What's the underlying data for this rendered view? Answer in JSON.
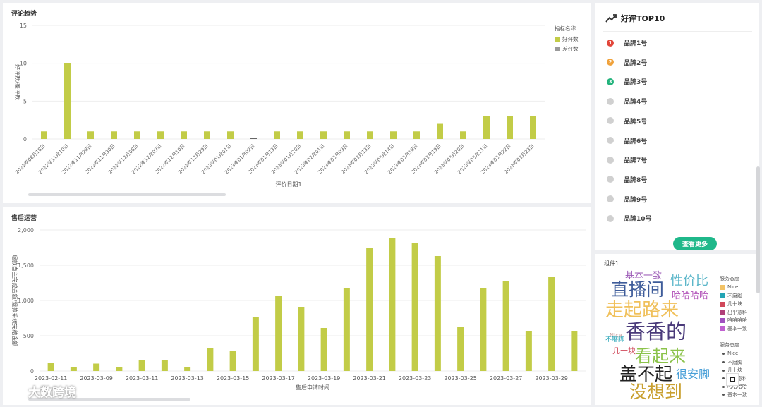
{
  "colors": {
    "bar": "#c2cc47",
    "bad": "#9a9a9a",
    "accent": "#1fb88a"
  },
  "review_trend": {
    "title": "评论趋势",
    "legend_title": "指标名称",
    "legend": [
      "好评数",
      "差评数"
    ]
  },
  "after_sales": {
    "title": "售后运营"
  },
  "top10": {
    "title": "好评TOP10",
    "icon": "trending-up-icon",
    "items": [
      {
        "rank": "1",
        "name": "品牌1号",
        "color": "#e2463a"
      },
      {
        "rank": "2",
        "name": "品牌2号",
        "color": "#f0a23b"
      },
      {
        "rank": "3",
        "name": "品牌3号",
        "color": "#23b37c"
      },
      {
        "rank": "",
        "name": "品牌4号",
        "color": "#d0d0d0"
      },
      {
        "rank": "",
        "name": "品牌5号",
        "color": "#d0d0d0"
      },
      {
        "rank": "",
        "name": "品牌6号",
        "color": "#d0d0d0"
      },
      {
        "rank": "",
        "name": "品牌7号",
        "color": "#d0d0d0"
      },
      {
        "rank": "",
        "name": "品牌8号",
        "color": "#d0d0d0"
      },
      {
        "rank": "",
        "name": "品牌9号",
        "color": "#d0d0d0"
      },
      {
        "rank": "",
        "name": "品牌10号",
        "color": "#d0d0d0"
      }
    ],
    "more_label": "查看更多"
  },
  "wordcloud": {
    "title": "组件1",
    "words": [
      {
        "text": "基本一致",
        "color": "#9b59b6"
      },
      {
        "text": "性价比",
        "color": "#5bb6c9"
      },
      {
        "text": "直播间",
        "color": "#3e5c9a"
      },
      {
        "text": "哈哈哈哈",
        "color": "#b04fb7"
      },
      {
        "text": "走起路来",
        "color": "#f0c05a"
      },
      {
        "text": "香香的",
        "color": "#4a3a7a"
      },
      {
        "text": "Nice",
        "color": "#c9a0a0"
      },
      {
        "text": "不磨脚",
        "color": "#2aa6b8"
      },
      {
        "text": "几十块",
        "color": "#d0485a"
      },
      {
        "text": "看起来",
        "color": "#8bc34a"
      },
      {
        "text": "盖不起",
        "color": "#222222"
      },
      {
        "text": "很安脚",
        "color": "#4aa0d8"
      },
      {
        "text": "没想到",
        "color": "#c9a030"
      }
    ],
    "legend1_title": "服务态度",
    "legend1": [
      {
        "label": "Nice",
        "color": "#f2c265"
      },
      {
        "label": "不磨脚",
        "color": "#23a5b5"
      },
      {
        "label": "几十块",
        "color": "#d0485a"
      },
      {
        "label": "出乎意料",
        "color": "#b0407a"
      },
      {
        "label": "哈哈哈哈",
        "color": "#a050c0"
      },
      {
        "label": "基本一致",
        "color": "#c060d0"
      }
    ],
    "legend2_title": "服务态度",
    "legend2": [
      "Nice",
      "不磨脚",
      "几十块",
      "出乎意料",
      "哈哈哈哈",
      "基本一致"
    ]
  },
  "watermark": "大数跨境",
  "chart_data": [
    {
      "type": "bar",
      "title": "评论趋势",
      "xlabel": "评价日期1",
      "ylabel": "好评数/差评数",
      "ylim": [
        0,
        15
      ],
      "yticks": [
        0,
        5,
        10,
        15
      ],
      "categories": [
        "2022年08月18日",
        "2022年11月10日",
        "2022年11月28日",
        "2022年11月30日",
        "2022年12月08日",
        "2022年12月09日",
        "2022年12月10日",
        "2022年12月29日",
        "2023年01月01日",
        "2023年01月02日",
        "2023年01月13日",
        "2023年01月20日",
        "2023年02月01日",
        "2023年03月09日",
        "2023年03月13日",
        "2023年03月14日",
        "2023年03月18日",
        "2023年03月19日",
        "2023年03月20日",
        "2023年03月21日",
        "2023年03月22日",
        "2023年03月23日"
      ],
      "series": [
        {
          "name": "好评数",
          "values": [
            1,
            10,
            1,
            1,
            1,
            1,
            1,
            1,
            1,
            0,
            1,
            1,
            1,
            1,
            1,
            1,
            1,
            2,
            1,
            3,
            3,
            3
          ]
        },
        {
          "name": "差评数",
          "values": [
            0,
            0,
            0,
            0,
            0,
            0,
            0,
            0,
            0,
            0,
            0,
            0,
            0,
            0,
            0,
            0,
            0,
            0,
            0,
            0,
            0,
            0
          ]
        }
      ],
      "legend": "top-right",
      "grid": true
    },
    {
      "type": "bar",
      "title": "售后运营",
      "xlabel": "售后申请时间",
      "ylabel": "退款自主完成金额/退款系统完结金额",
      "ylim": [
        0,
        2000
      ],
      "yticks": [
        0,
        500,
        1000,
        1500,
        2000
      ],
      "ytick_labels": [
        "0",
        "500",
        "1,000",
        "1,500",
        "2,000"
      ],
      "x_tick_labels": [
        "2023-02-11",
        "2023-03-09",
        "2023-03-11",
        "2023-03-13",
        "2023-03-15",
        "2023-03-17",
        "2023-03-19",
        "2023-03-21",
        "2023-03-23",
        "2023-03-25",
        "2023-03-27",
        "2023-03-29"
      ],
      "values": [
        110,
        60,
        105,
        55,
        155,
        155,
        50,
        320,
        280,
        760,
        1060,
        910,
        610,
        1170,
        1740,
        1890,
        1810,
        1630,
        620,
        1180,
        1270,
        570,
        1340,
        570
      ],
      "grid": true
    }
  ]
}
